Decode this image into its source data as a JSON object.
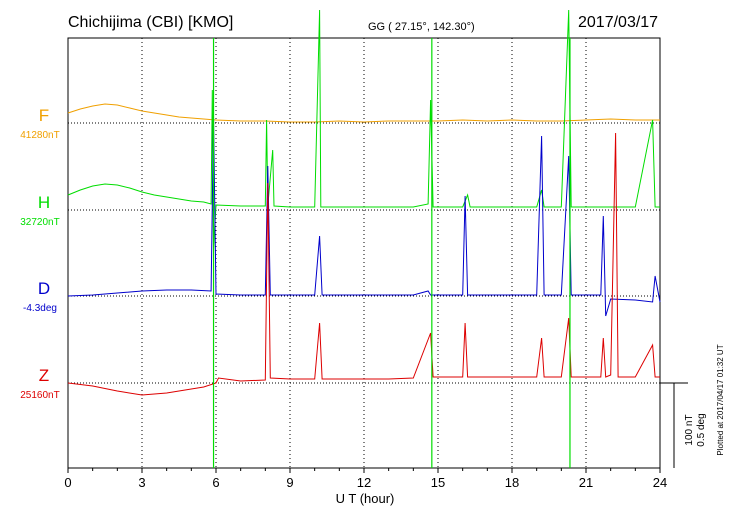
{
  "header": {
    "station": "Chichijima (CBI)  [KMO]",
    "coords": "GG ( 27.15°, 142.30°)",
    "date": "2017/03/17"
  },
  "footer": {
    "plotted": "Plotted at 2017/04/17 01:32 UT"
  },
  "chart_data": {
    "type": "line",
    "xlabel": "U T (hour)",
    "xlim": [
      0,
      24
    ],
    "xticks": [
      "0",
      "3",
      "6",
      "9",
      "12",
      "15",
      "18",
      "21",
      "24"
    ],
    "scale": {
      "line1": "100 nT",
      "line2": "0.5 deg"
    },
    "colors": {
      "F": "#f0a000",
      "H": "#00dd00",
      "D": "#0000cc",
      "Z": "#dd0000"
    },
    "series": [
      {
        "name": "F",
        "baseline": "41280nT",
        "points": [
          [
            0,
            -10
          ],
          [
            0.5,
            -14
          ],
          [
            1,
            -17
          ],
          [
            1.5,
            -19
          ],
          [
            2,
            -18
          ],
          [
            2.5,
            -15
          ],
          [
            3,
            -12
          ],
          [
            3.5,
            -10
          ],
          [
            4,
            -8
          ],
          [
            4.5,
            -6
          ],
          [
            5,
            -5
          ],
          [
            5.5,
            -4
          ],
          [
            6,
            -3
          ],
          [
            7,
            -2
          ],
          [
            8,
            -2
          ],
          [
            9,
            -1
          ],
          [
            10,
            -1
          ],
          [
            11,
            -2
          ],
          [
            12,
            -1
          ],
          [
            13,
            -2
          ],
          [
            14,
            -2
          ],
          [
            15,
            -2
          ],
          [
            16,
            -3
          ],
          [
            17,
            -2
          ],
          [
            18,
            -3
          ],
          [
            19,
            -2
          ],
          [
            20,
            -2
          ],
          [
            21,
            -3
          ],
          [
            22,
            -4
          ],
          [
            23,
            -3
          ],
          [
            24,
            -3
          ]
        ]
      },
      {
        "name": "H",
        "baseline": "32720nT",
        "points": [
          [
            0,
            -15
          ],
          [
            0.5,
            -20
          ],
          [
            1,
            -24
          ],
          [
            1.5,
            -26
          ],
          [
            2,
            -25
          ],
          [
            2.5,
            -22
          ],
          [
            3,
            -18
          ],
          [
            3.5,
            -15
          ],
          [
            4,
            -13
          ],
          [
            4.5,
            -11
          ],
          [
            5,
            -9
          ],
          [
            5.5,
            -8
          ],
          [
            5.8,
            -6
          ],
          [
            5.85,
            -120
          ],
          [
            5.9,
            40
          ],
          [
            6,
            -5
          ],
          [
            7,
            -4
          ],
          [
            8,
            -4
          ],
          [
            8.05,
            -90
          ],
          [
            8.1,
            -4
          ],
          [
            8.3,
            -60
          ],
          [
            8.35,
            -4
          ],
          [
            9,
            -3
          ],
          [
            10,
            -3
          ],
          [
            10.2,
            -200
          ],
          [
            10.25,
            -3
          ],
          [
            11,
            -3
          ],
          [
            12,
            -3
          ],
          [
            13,
            -3
          ],
          [
            14,
            -3
          ],
          [
            14.6,
            -6
          ],
          [
            14.7,
            -110
          ],
          [
            14.8,
            -3
          ],
          [
            15,
            -3
          ],
          [
            16,
            -3
          ],
          [
            16.2,
            -15
          ],
          [
            16.3,
            -3
          ],
          [
            17,
            -3
          ],
          [
            18,
            -3
          ],
          [
            19,
            -3
          ],
          [
            19.2,
            -20
          ],
          [
            19.3,
            -3
          ],
          [
            20,
            -3
          ],
          [
            20.3,
            -200
          ],
          [
            20.4,
            -3
          ],
          [
            21,
            -3
          ],
          [
            22,
            -3
          ],
          [
            23,
            -3
          ],
          [
            23.7,
            -90
          ],
          [
            23.8,
            -3
          ],
          [
            24,
            -3
          ]
        ]
      },
      {
        "name": "D",
        "baseline": "-4.3deg",
        "points": [
          [
            0,
            0
          ],
          [
            1,
            -1
          ],
          [
            2,
            -3
          ],
          [
            3,
            -5
          ],
          [
            4,
            -6
          ],
          [
            5,
            -6
          ],
          [
            5.8,
            -5
          ],
          [
            5.9,
            -180
          ],
          [
            6,
            -2
          ],
          [
            7,
            -1
          ],
          [
            8,
            -1
          ],
          [
            8.1,
            -130
          ],
          [
            8.2,
            -1
          ],
          [
            9,
            -1
          ],
          [
            10,
            -1
          ],
          [
            10.2,
            -60
          ],
          [
            10.3,
            -1
          ],
          [
            11,
            -1
          ],
          [
            12,
            -1
          ],
          [
            13,
            -1
          ],
          [
            14,
            -1
          ],
          [
            14.6,
            -5
          ],
          [
            14.7,
            -1
          ],
          [
            15,
            -1
          ],
          [
            16,
            -1
          ],
          [
            16.1,
            -100
          ],
          [
            16.2,
            -1
          ],
          [
            17,
            -1
          ],
          [
            18,
            -1
          ],
          [
            19,
            -1
          ],
          [
            19.2,
            -160
          ],
          [
            19.3,
            -1
          ],
          [
            20,
            -1
          ],
          [
            20.3,
            -140
          ],
          [
            20.4,
            -1
          ],
          [
            21,
            -1
          ],
          [
            21.6,
            -1
          ],
          [
            21.7,
            -80
          ],
          [
            21.8,
            20
          ],
          [
            22,
            3
          ],
          [
            23,
            4
          ],
          [
            23.7,
            6
          ],
          [
            23.8,
            -20
          ],
          [
            24,
            6
          ]
        ]
      },
      {
        "name": "Z",
        "baseline": "25160nT",
        "points": [
          [
            0,
            0
          ],
          [
            1,
            3
          ],
          [
            2,
            8
          ],
          [
            3,
            12
          ],
          [
            4,
            10
          ],
          [
            5,
            6
          ],
          [
            5.5,
            4
          ],
          [
            6,
            0
          ],
          [
            6.1,
            -5
          ],
          [
            7,
            -2
          ],
          [
            8,
            -3
          ],
          [
            8.1,
            -200
          ],
          [
            8.2,
            -5
          ],
          [
            9,
            -4
          ],
          [
            10,
            -4
          ],
          [
            10.2,
            -60
          ],
          [
            10.3,
            -4
          ],
          [
            11,
            -4
          ],
          [
            12,
            -4
          ],
          [
            13,
            -4
          ],
          [
            14,
            -5
          ],
          [
            14.7,
            -50
          ],
          [
            14.8,
            -6
          ],
          [
            15,
            -6
          ],
          [
            16,
            -6
          ],
          [
            16.1,
            -60
          ],
          [
            16.2,
            -6
          ],
          [
            17,
            -6
          ],
          [
            18,
            -6
          ],
          [
            19,
            -6
          ],
          [
            19.2,
            -45
          ],
          [
            19.3,
            -6
          ],
          [
            20,
            -6
          ],
          [
            20.3,
            -65
          ],
          [
            20.4,
            -6
          ],
          [
            21,
            -6
          ],
          [
            21.6,
            -6
          ],
          [
            21.7,
            -45
          ],
          [
            21.8,
            -6
          ],
          [
            22,
            -8
          ],
          [
            22.2,
            -250
          ],
          [
            22.3,
            -6
          ],
          [
            23,
            -6
          ],
          [
            23.7,
            -38
          ],
          [
            23.8,
            -6
          ],
          [
            24,
            -6
          ]
        ]
      }
    ],
    "vertical_lines": [
      {
        "x": 5.9,
        "color": "#00dd00"
      },
      {
        "x": 14.75,
        "color": "#00dd00"
      },
      {
        "x": 20.35,
        "color": "#00dd00"
      }
    ]
  }
}
